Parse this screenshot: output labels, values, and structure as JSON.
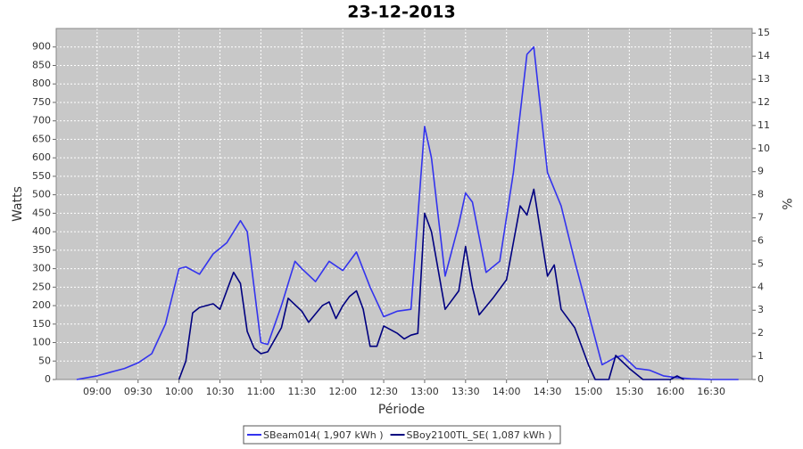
{
  "chart_data": {
    "type": "line",
    "title": "23-12-2013",
    "x_label": "Période",
    "y_label": "Watts",
    "y2_label": "%",
    "xlim": [
      "08:30",
      "17:00"
    ],
    "xticks": [
      "09:00",
      "09:30",
      "10:00",
      "10:30",
      "11:00",
      "11:30",
      "12:00",
      "12:30",
      "13:00",
      "13:30",
      "14:00",
      "14:30",
      "15:00",
      "15:30",
      "16:00",
      "16:30"
    ],
    "ylim": [
      0,
      950
    ],
    "yticks": [
      0,
      50,
      100,
      150,
      200,
      250,
      300,
      350,
      400,
      450,
      500,
      550,
      600,
      650,
      700,
      750,
      800,
      850,
      900
    ],
    "y2lim": [
      0,
      15.2
    ],
    "y2ticks": [
      0,
      1,
      2,
      3,
      4,
      5,
      6,
      7,
      8,
      9,
      10,
      11,
      12,
      13,
      14,
      15
    ],
    "grid": true,
    "legend": "bottom",
    "series": [
      {
        "name": "SBeam014( 1,907 kWh )",
        "color": "#3333ee",
        "x": [
          "08:45",
          "09:00",
          "09:10",
          "09:20",
          "09:30",
          "09:40",
          "09:50",
          "10:00",
          "10:05",
          "10:15",
          "10:25",
          "10:35",
          "10:45",
          "10:50",
          "11:00",
          "11:05",
          "11:15",
          "11:25",
          "11:30",
          "11:40",
          "11:50",
          "12:00",
          "12:10",
          "12:20",
          "12:30",
          "12:40",
          "12:50",
          "13:00",
          "13:05",
          "13:15",
          "13:25",
          "13:30",
          "13:35",
          "13:45",
          "13:55",
          "14:05",
          "14:15",
          "14:20",
          "14:30",
          "14:40",
          "14:50",
          "15:00",
          "15:10",
          "15:20",
          "15:25",
          "15:35",
          "15:45",
          "15:55",
          "16:05",
          "16:15",
          "16:30",
          "16:50"
        ],
        "values": [
          0,
          10,
          20,
          30,
          45,
          70,
          150,
          300,
          305,
          285,
          340,
          370,
          430,
          400,
          100,
          95,
          200,
          320,
          300,
          265,
          320,
          295,
          345,
          250,
          170,
          185,
          190,
          685,
          600,
          280,
          420,
          505,
          480,
          290,
          320,
          560,
          880,
          900,
          560,
          470,
          320,
          180,
          40,
          60,
          65,
          30,
          25,
          10,
          5,
          2,
          0,
          0
        ]
      },
      {
        "name": "SBoy2100TL_SE( 1,087 kWh )",
        "color": "#000080",
        "x": [
          "10:00",
          "10:05",
          "10:10",
          "10:15",
          "10:25",
          "10:30",
          "10:40",
          "10:45",
          "10:50",
          "10:55",
          "11:00",
          "11:05",
          "11:15",
          "11:20",
          "11:30",
          "11:35",
          "11:45",
          "11:50",
          "11:55",
          "12:00",
          "12:05",
          "12:10",
          "12:15",
          "12:20",
          "12:25",
          "12:30",
          "12:40",
          "12:45",
          "12:50",
          "12:55",
          "13:00",
          "13:05",
          "13:15",
          "13:25",
          "13:30",
          "13:35",
          "13:40",
          "13:50",
          "14:00",
          "14:10",
          "14:15",
          "14:20",
          "14:30",
          "14:35",
          "14:40",
          "14:50",
          "15:00",
          "15:05",
          "15:15",
          "15:20",
          "15:30",
          "15:40",
          "16:00",
          "16:05",
          "16:10"
        ],
        "values": [
          0,
          50,
          180,
          195,
          205,
          190,
          290,
          260,
          130,
          85,
          70,
          75,
          140,
          220,
          185,
          155,
          200,
          210,
          165,
          200,
          225,
          240,
          190,
          90,
          90,
          145,
          125,
          110,
          120,
          125,
          450,
          400,
          190,
          240,
          360,
          250,
          175,
          220,
          270,
          470,
          445,
          515,
          280,
          310,
          190,
          140,
          40,
          0,
          0,
          65,
          30,
          0,
          0,
          10,
          0
        ]
      }
    ]
  }
}
